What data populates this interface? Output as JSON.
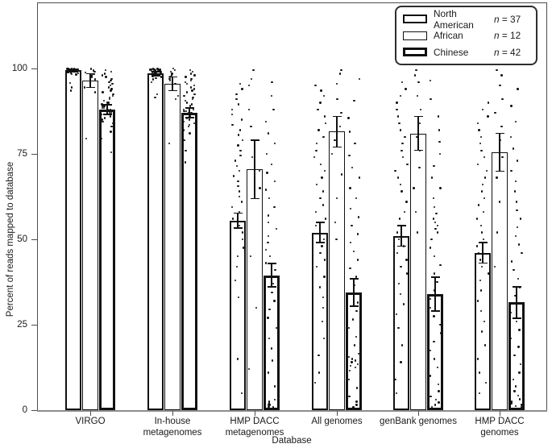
{
  "figure": {
    "background": "#ffffff",
    "ink_color": "#111111",
    "box_color": "#4d4d4d",
    "axis_line_color": "#8c8c8c"
  },
  "chart_data": {
    "type": "bar",
    "title": "",
    "xlabel": "Database",
    "ylabel": "Percent of reads mapped to database",
    "ylim": [
      0,
      119
    ],
    "yticks": [
      0,
      25,
      50,
      75,
      100
    ],
    "grid": false,
    "legend_position": "top-right",
    "error_bars": true,
    "scatter_overlay": true,
    "categories": [
      "VIRGO",
      "In-house metagenomes",
      "HMP DACC metagenomes",
      "All genomes",
      "genBank genomes",
      "HMP DACC genomes"
    ],
    "category_lines": [
      [
        "VIRGO"
      ],
      [
        "In-house",
        "metagenomes"
      ],
      [
        "HMP DACC",
        "metagenomes"
      ],
      [
        "All genomes"
      ],
      [
        "genBank genomes"
      ],
      [
        "HMP DACC",
        "genomes"
      ]
    ],
    "series": [
      {
        "name": "North American",
        "n": 37,
        "n_text": "n = 37",
        "border_px": 2,
        "means": [
          99.5,
          98.5,
          55.5,
          52,
          51,
          46
        ],
        "errors": [
          0.4,
          0.6,
          2.2,
          3,
          3,
          3
        ],
        "points": [
          [
            100,
            100,
            100,
            100,
            99.9,
            99.9,
            99.8,
            99.8,
            99.8,
            99.7,
            99.7,
            99.7,
            99.6,
            99.6,
            99.6,
            99.5,
            99.5,
            99.5,
            99.4,
            99.4,
            99.3,
            99.3,
            99.2,
            99.2,
            99.1,
            99.1,
            99,
            99,
            98.9,
            98.8,
            98.7,
            98.6,
            98.4,
            98.2,
            95.7,
            94.5,
            93.5
          ],
          [
            100,
            99.9,
            99.8,
            99.8,
            99.7,
            99.7,
            99.6,
            99.6,
            99.5,
            99.5,
            99.4,
            99.4,
            99.3,
            99.3,
            99.2,
            99.2,
            99.1,
            99,
            99,
            98.9,
            98.8,
            98.8,
            98.7,
            98.6,
            98.5,
            98.4,
            98.3,
            98.2,
            98.1,
            98,
            97.8,
            97.5,
            97.2,
            96.8,
            96,
            92.5,
            91.5
          ],
          [
            95.5,
            94,
            92.5,
            91,
            89.5,
            88,
            86.5,
            85,
            83.5,
            82,
            80.5,
            79,
            77.5,
            76,
            74.5,
            73,
            71.5,
            70,
            68.5,
            67,
            65.5,
            64,
            62.5,
            61,
            59.5,
            58,
            56,
            54,
            52,
            50,
            47.5,
            45,
            42,
            38,
            33,
            15,
            5
          ],
          [
            95,
            93.5,
            92,
            90,
            88,
            86,
            84,
            82,
            80,
            78,
            76,
            74,
            72,
            70,
            68,
            66,
            64,
            62,
            60,
            58,
            56,
            54,
            52,
            50,
            48,
            46,
            44,
            42,
            39,
            36,
            33,
            30,
            26,
            21,
            16,
            11,
            8
          ],
          [
            96,
            94,
            92,
            90,
            88,
            86,
            84,
            82,
            80,
            78,
            76,
            74,
            72,
            70,
            68,
            66,
            64,
            61,
            58,
            56,
            54,
            52,
            50,
            48,
            46,
            44,
            42,
            40,
            37,
            34,
            31,
            28,
            24,
            19,
            14,
            9,
            5
          ],
          [
            90,
            88,
            86,
            84,
            82,
            80,
            78,
            76,
            74,
            72,
            70,
            68,
            66,
            64,
            62,
            60,
            58,
            56,
            54,
            52,
            50,
            48,
            46,
            44,
            42,
            40,
            38,
            35,
            32,
            29,
            26,
            23,
            19,
            15,
            11,
            8,
            5
          ]
        ]
      },
      {
        "name": "African",
        "n": 12,
        "n_text": "n = 12",
        "border_px": 1,
        "means": [
          96.5,
          95.5,
          70.5,
          81.5,
          81,
          75.5
        ],
        "errors": [
          2,
          2,
          8.5,
          4.5,
          5,
          5.5
        ],
        "points": [
          [
            100,
            99.7,
            99.4,
            99.1,
            98.8,
            98.4,
            98,
            97.5,
            96.8,
            94.5,
            93,
            79.5
          ],
          [
            100,
            99.5,
            99,
            98.5,
            98,
            97.5,
            97,
            96.5,
            95.5,
            92,
            91,
            78
          ],
          [
            99.5,
            97,
            95,
            88,
            83,
            79,
            74,
            70,
            65,
            45,
            30,
            12
          ],
          [
            99.5,
            98.5,
            95.5,
            91,
            87,
            83,
            79,
            75,
            69,
            62,
            55,
            50
          ],
          [
            99.5,
            98,
            96,
            92,
            88,
            84,
            80,
            76,
            71,
            65,
            58,
            52
          ],
          [
            99.5,
            98,
            95,
            91,
            87,
            83,
            79,
            74,
            68,
            61,
            52,
            42
          ]
        ]
      },
      {
        "name": "Chinese",
        "n": 42,
        "n_text": "n = 42",
        "border_px": 3,
        "means": [
          88,
          87,
          39.5,
          34.5,
          34,
          31.5
        ],
        "errors": [
          1.5,
          1.5,
          3.5,
          4,
          5,
          4.5
        ],
        "points": [
          [
            99.5,
            99,
            98.5,
            98,
            97.5,
            97,
            96.5,
            96,
            95.5,
            95,
            94.5,
            94,
            93.5,
            93,
            92.5,
            92,
            91.5,
            91,
            90.5,
            90,
            90,
            89.5,
            89,
            89,
            88.5,
            88.5,
            88,
            88,
            87.5,
            87.5,
            87,
            87,
            86.5,
            86,
            85.5,
            85,
            84.5,
            84,
            83,
            81.5,
            79.5,
            75.5
          ],
          [
            99.5,
            99,
            98.5,
            98,
            97.5,
            97,
            96.5,
            96,
            95.5,
            95,
            94.5,
            94,
            93.5,
            93,
            92.5,
            92,
            91.5,
            91,
            90.5,
            90,
            89.5,
            89,
            88.5,
            88,
            88,
            87.5,
            87.5,
            87,
            87,
            86.5,
            86,
            85.5,
            85,
            84.5,
            84,
            83.5,
            83,
            82,
            81,
            79,
            76,
            72.5
          ],
          [
            96,
            92,
            88,
            84.5,
            81,
            78,
            75,
            72,
            69.5,
            67,
            64.5,
            62,
            59.5,
            57,
            55,
            53,
            51,
            49,
            47,
            45,
            43,
            41,
            39,
            37,
            34.5,
            32,
            29.5,
            27,
            24,
            21,
            18,
            14.5,
            11,
            7,
            3,
            2.5,
            2,
            1.5,
            1.5,
            1,
            0.8,
            0.5
          ],
          [
            97,
            90.5,
            85.5,
            81.5,
            78,
            74.5,
            71,
            68,
            65,
            62,
            59,
            56.5,
            54,
            51.5,
            49,
            46.5,
            44,
            41.5,
            39,
            36.5,
            34,
            31.5,
            29,
            26.5,
            24,
            21.5,
            19,
            16.5,
            15.5,
            15,
            14.5,
            14,
            13.5,
            13,
            12.5,
            11.5,
            9,
            6.5,
            4,
            2.5,
            1.5,
            0.8
          ],
          [
            96.5,
            91,
            86,
            82,
            78.5,
            75,
            71.5,
            68,
            65,
            62,
            59.5,
            57.5,
            56,
            55,
            54,
            53,
            52,
            50,
            47.5,
            45,
            42.5,
            40,
            37.5,
            35,
            32.5,
            30,
            27.5,
            25,
            22.5,
            20,
            17.5,
            15,
            12.5,
            10,
            7.5,
            5.5,
            4,
            3,
            2.2,
            1.5,
            1,
            0.5
          ],
          [
            94,
            89,
            84.5,
            80,
            76.5,
            73,
            70,
            67,
            64,
            61,
            58.5,
            56,
            53.5,
            51,
            48.5,
            46,
            43.5,
            41,
            38.5,
            36,
            33.5,
            31,
            28.5,
            26,
            23.5,
            21,
            18.5,
            16,
            13.5,
            11,
            9,
            7,
            5.5,
            4.2,
            3.2,
            2.5,
            2,
            1.5,
            1.2,
            0.8,
            0.5,
            0.3
          ]
        ]
      }
    ]
  }
}
